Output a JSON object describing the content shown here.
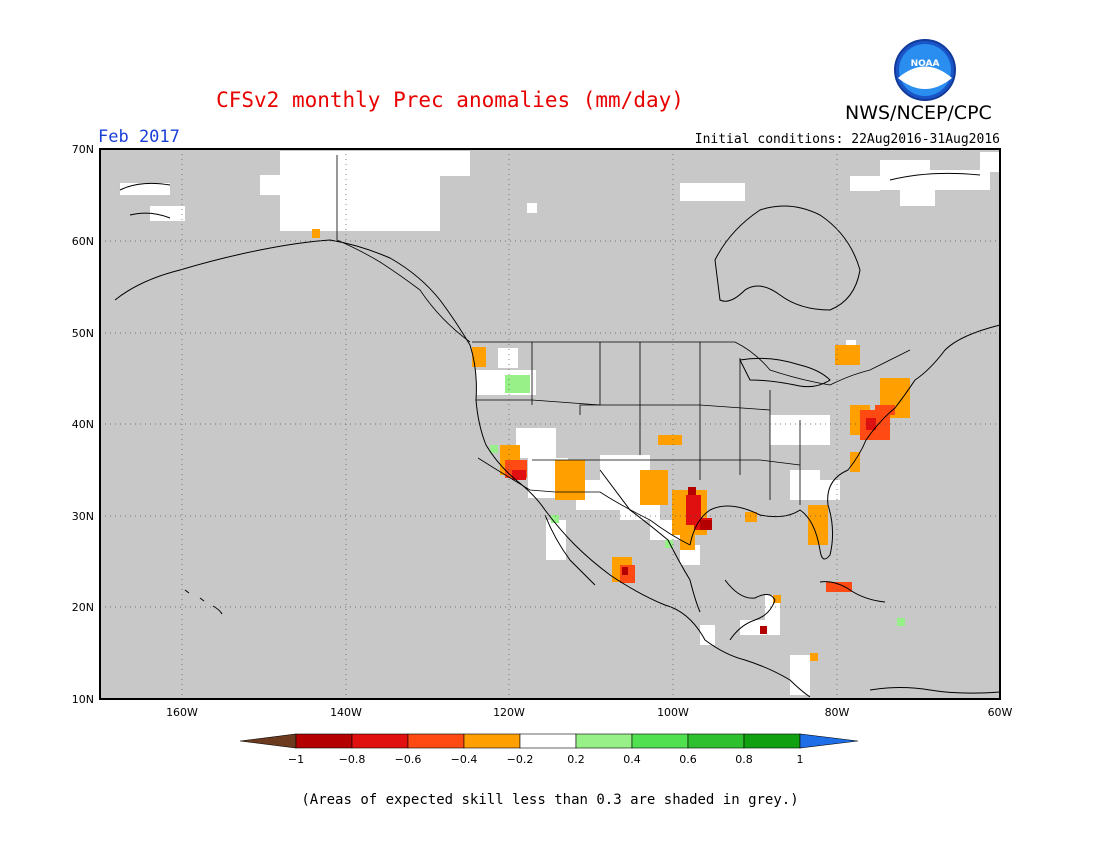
{
  "title": "CFSv2 monthly Prec anomalies (mm/day)",
  "agency": "NWS/NCEP/CPC",
  "logo_text": "NOAA",
  "period": "Feb 2017",
  "initial_conditions": "Initial conditions: 22Aug2016-31Aug2016",
  "caption": "(Areas of expected skill less than 0.3 are shaded in grey.)",
  "map": {
    "lon_range": [
      -170,
      -60
    ],
    "lat_range": [
      10,
      70
    ],
    "lat_labels": [
      "70N",
      "60N",
      "50N",
      "40N",
      "30N",
      "20N",
      "10N"
    ],
    "lon_labels": [
      "160W",
      "140W",
      "120W",
      "100W",
      "80W",
      "60W"
    ],
    "grid": "dotted",
    "background_color": "#c8c8c8"
  },
  "colorbar": {
    "tick_labels": [
      "−1",
      "−0.8",
      "−0.6",
      "−0.4",
      "−0.2",
      "0.2",
      "0.4",
      "0.6",
      "0.8",
      "1"
    ],
    "colors": [
      "#6b3a1f",
      "#b40000",
      "#e01010",
      "#ff4a14",
      "#ffa000",
      "#ffffff",
      "#98f088",
      "#50e050",
      "#2ec02e",
      "#10a010",
      "#1e6ee8"
    ]
  }
}
